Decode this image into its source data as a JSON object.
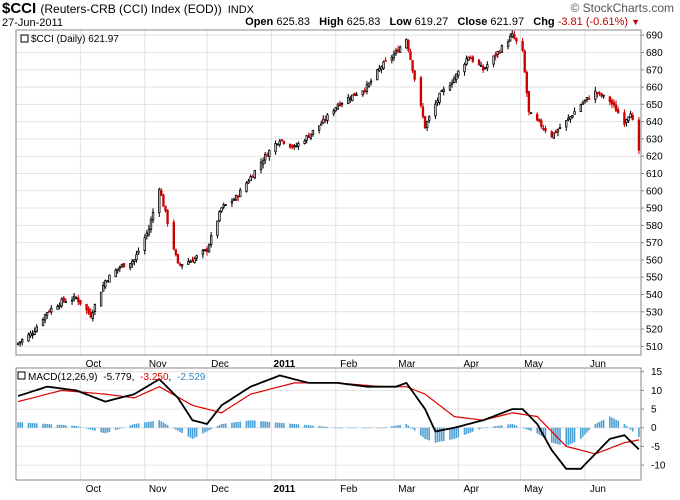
{
  "header": {
    "symbol": "$CCI",
    "name": "(Reuters-CRB (CCI) Index (EOD))",
    "exchange": "INDX",
    "date": "27-Jun-2011",
    "brand": "© StockCharts.com",
    "open_label": "Open",
    "open_value": "625.83",
    "high_label": "High",
    "high_value": "625.83",
    "low_label": "Low",
    "low_value": "619.27",
    "close_label": "Close",
    "close_value": "621.97",
    "chg_label": "Chg",
    "chg_value": "-3.81 (-0.61%)"
  },
  "legend": {
    "price": "$CCI (Daily) 621.97",
    "macd_label": "MACD(12,26,9)",
    "macd_value": "-5.779",
    "signal_value": "-3.250",
    "hist_value": "-2.529"
  },
  "colors": {
    "up_candle": "#000000",
    "down_candle": "#cc0000",
    "macd_line": "#000000",
    "signal_line": "#dd0000",
    "histogram": "#4a9fd5",
    "grid": "#e2e2e2"
  },
  "chart_data": [
    {
      "type": "candlestick",
      "title": "$CCI (Daily) 621.97",
      "ylim": [
        505,
        693
      ],
      "yticks": [
        510,
        520,
        530,
        540,
        550,
        560,
        570,
        580,
        590,
        600,
        610,
        620,
        630,
        640,
        650,
        660,
        670,
        680,
        690
      ],
      "xticks": [
        "Oct",
        "Nov",
        "Dec",
        "2011",
        "Feb",
        "Mar",
        "Apr",
        "May",
        "Jun"
      ],
      "grid": true,
      "close_path": [
        [
          "2010-09-01",
          512
        ],
        [
          "2010-09-08",
          518
        ],
        [
          "2010-09-15",
          530
        ],
        [
          "2010-09-22",
          536
        ],
        [
          "2010-09-29",
          538
        ],
        [
          "2010-10-06",
          528
        ],
        [
          "2010-10-13",
          548
        ],
        [
          "2010-10-20",
          556
        ],
        [
          "2010-10-27",
          560
        ],
        [
          "2010-11-03",
          578
        ],
        [
          "2010-11-08",
          602
        ],
        [
          "2010-11-12",
          582
        ],
        [
          "2010-11-17",
          557
        ],
        [
          "2010-11-24",
          560
        ],
        [
          "2010-12-01",
          566
        ],
        [
          "2010-12-08",
          590
        ],
        [
          "2010-12-15",
          596
        ],
        [
          "2010-12-22",
          608
        ],
        [
          "2010-12-29",
          620
        ],
        [
          "2011-01-05",
          630
        ],
        [
          "2011-01-12",
          625
        ],
        [
          "2011-01-19",
          632
        ],
        [
          "2011-01-26",
          640
        ],
        [
          "2011-02-02",
          650
        ],
        [
          "2011-02-09",
          655
        ],
        [
          "2011-02-16",
          660
        ],
        [
          "2011-02-23",
          672
        ],
        [
          "2011-03-02",
          680
        ],
        [
          "2011-03-07",
          688
        ],
        [
          "2011-03-11",
          665
        ],
        [
          "2011-03-16",
          637
        ],
        [
          "2011-03-23",
          655
        ],
        [
          "2011-03-30",
          665
        ],
        [
          "2011-04-06",
          678
        ],
        [
          "2011-04-13",
          670
        ],
        [
          "2011-04-20",
          680
        ],
        [
          "2011-04-27",
          690
        ],
        [
          "2011-05-02",
          680
        ],
        [
          "2011-05-05",
          645
        ],
        [
          "2011-05-09",
          640
        ],
        [
          "2011-05-16",
          632
        ],
        [
          "2011-05-23",
          640
        ],
        [
          "2011-05-30",
          650
        ],
        [
          "2011-06-06",
          657
        ],
        [
          "2011-06-13",
          652
        ],
        [
          "2011-06-20",
          640
        ],
        [
          "2011-06-23",
          646
        ],
        [
          "2011-06-27",
          622
        ]
      ]
    },
    {
      "type": "line",
      "title": "MACD(12,26,9)",
      "ylim": [
        -14,
        16
      ],
      "yticks": [
        -10,
        -5,
        0,
        5,
        10,
        15
      ],
      "series": [
        {
          "name": "MACD",
          "points": [
            [
              "2010-09-01",
              8.5
            ],
            [
              "2010-09-15",
              11
            ],
            [
              "2010-09-29",
              10
            ],
            [
              "2010-10-13",
              7
            ],
            [
              "2010-10-27",
              9
            ],
            [
              "2010-11-08",
              13
            ],
            [
              "2010-11-17",
              8
            ],
            [
              "2010-11-24",
              2
            ],
            [
              "2010-12-01",
              1
            ],
            [
              "2010-12-08",
              6
            ],
            [
              "2010-12-22",
              11
            ],
            [
              "2011-01-05",
              14
            ],
            [
              "2011-01-19",
              12
            ],
            [
              "2011-02-02",
              12
            ],
            [
              "2011-02-16",
              11
            ],
            [
              "2011-03-02",
              11
            ],
            [
              "2011-03-07",
              12
            ],
            [
              "2011-03-16",
              5
            ],
            [
              "2011-03-21",
              -1
            ],
            [
              "2011-03-30",
              0
            ],
            [
              "2011-04-13",
              2
            ],
            [
              "2011-04-27",
              5
            ],
            [
              "2011-05-02",
              5
            ],
            [
              "2011-05-09",
              1
            ],
            [
              "2011-05-16",
              -6
            ],
            [
              "2011-05-23",
              -11
            ],
            [
              "2011-05-30",
              -11
            ],
            [
              "2011-06-06",
              -7
            ],
            [
              "2011-06-13",
              -3
            ],
            [
              "2011-06-20",
              -2
            ],
            [
              "2011-06-27",
              -5.8
            ]
          ]
        },
        {
          "name": "Signal",
          "points": [
            [
              "2010-09-01",
              7
            ],
            [
              "2010-09-22",
              10
            ],
            [
              "2010-10-13",
              9
            ],
            [
              "2010-10-27",
              8
            ],
            [
              "2010-11-08",
              11
            ],
            [
              "2010-11-24",
              6
            ],
            [
              "2010-12-08",
              4
            ],
            [
              "2010-12-22",
              9
            ],
            [
              "2011-01-12",
              12
            ],
            [
              "2011-02-02",
              12
            ],
            [
              "2011-02-23",
              11
            ],
            [
              "2011-03-07",
              11
            ],
            [
              "2011-03-16",
              9
            ],
            [
              "2011-03-30",
              3
            ],
            [
              "2011-04-13",
              2
            ],
            [
              "2011-04-27",
              4
            ],
            [
              "2011-05-09",
              3
            ],
            [
              "2011-05-23",
              -5
            ],
            [
              "2011-06-06",
              -7
            ],
            [
              "2011-06-20",
              -4
            ],
            [
              "2011-06-27",
              -3.25
            ]
          ]
        },
        {
          "name": "Histogram",
          "type": "bar",
          "points": [
            [
              "2010-09-01",
              1.5
            ],
            [
              "2010-09-15",
              1
            ],
            [
              "2010-09-29",
              0.5
            ],
            [
              "2010-10-13",
              -1.5
            ],
            [
              "2010-10-27",
              1
            ],
            [
              "2010-11-08",
              2
            ],
            [
              "2010-11-24",
              -3
            ],
            [
              "2010-12-08",
              1
            ],
            [
              "2010-12-22",
              2
            ],
            [
              "2011-01-12",
              1
            ],
            [
              "2011-02-02",
              0
            ],
            [
              "2011-02-23",
              0
            ],
            [
              "2011-03-07",
              1
            ],
            [
              "2011-03-16",
              -3
            ],
            [
              "2011-03-21",
              -4
            ],
            [
              "2011-03-30",
              -3
            ],
            [
              "2011-04-13",
              0
            ],
            [
              "2011-04-27",
              1
            ],
            [
              "2011-05-09",
              -1.5
            ],
            [
              "2011-05-16",
              -4
            ],
            [
              "2011-05-23",
              -5
            ],
            [
              "2011-05-30",
              -3
            ],
            [
              "2011-06-06",
              1
            ],
            [
              "2011-06-13",
              3
            ],
            [
              "2011-06-20",
              1
            ],
            [
              "2011-06-27",
              -2.5
            ]
          ]
        }
      ]
    }
  ]
}
